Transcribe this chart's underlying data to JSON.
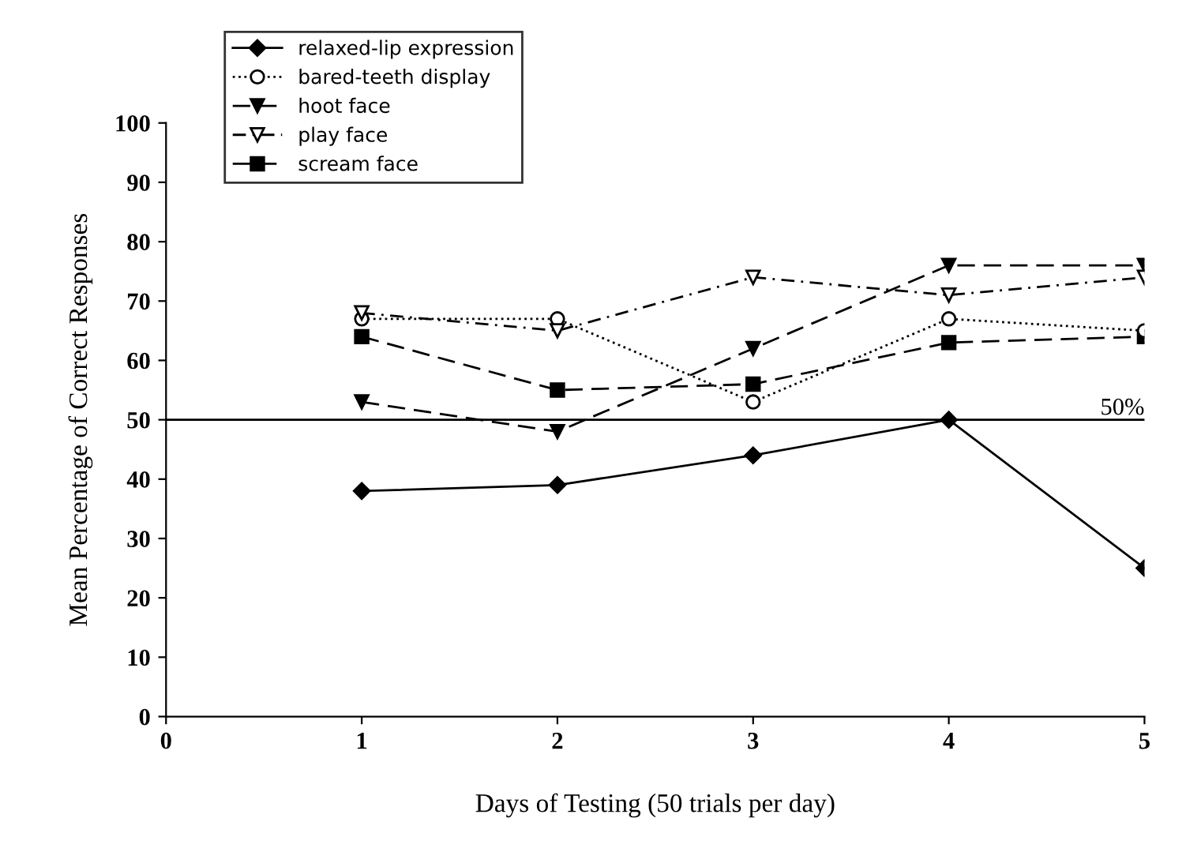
{
  "chart_data": {
    "type": "line",
    "xlabel": "Days of Testing (50 trials per day)",
    "ylabel": "Mean Percentage of Correct Responses",
    "x": [
      1,
      2,
      3,
      4,
      5
    ],
    "xlim": [
      0,
      5
    ],
    "xticks": [
      0,
      1,
      2,
      3,
      4,
      5
    ],
    "ylim": [
      0,
      100
    ],
    "yticks": [
      0,
      10,
      20,
      30,
      40,
      50,
      60,
      70,
      80,
      90,
      100
    ],
    "grid": false,
    "legend": "top left",
    "series": [
      {
        "name": "relaxed-lip expression",
        "color": "#000000",
        "marker": "diamond",
        "line_style": "solid",
        "values": [
          38,
          39,
          44,
          50,
          25
        ]
      },
      {
        "name": "bared-teeth display",
        "color": "#000000",
        "marker": "circle",
        "line_style": "dotted",
        "values": [
          67,
          67,
          53,
          67,
          65
        ]
      },
      {
        "name": "hoot face",
        "color": "#000000",
        "marker": "triangle",
        "line_style": "dashed",
        "values": [
          53,
          48,
          62,
          76,
          76
        ]
      },
      {
        "name": "play face",
        "color": "#000000",
        "marker": "triangle",
        "line_style": "dashdot",
        "values": [
          68,
          65,
          74,
          71,
          74
        ]
      },
      {
        "name": "scream face",
        "color": "#000000",
        "marker": "square",
        "line_style": "dashed",
        "values": [
          64,
          55,
          56,
          63,
          64
        ]
      }
    ],
    "ref_lines": [
      {
        "axis": "y",
        "value": 50,
        "label": "50%",
        "color": "#000000",
        "line_style": "solid"
      }
    ]
  }
}
